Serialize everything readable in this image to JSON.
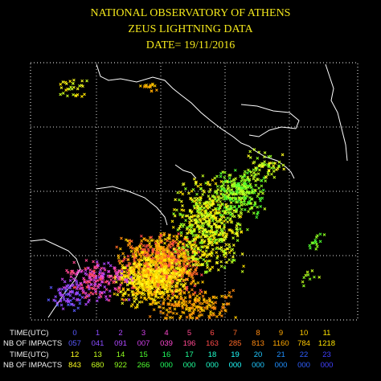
{
  "header": {
    "lines": [
      "NATIONAL OBSERVATORY OF ATHENS",
      "ZEUS LIGHTNING DATA",
      "DATE= 19/11/2016"
    ]
  },
  "legend": {
    "rows": [
      {
        "time_label": "TIME(UTC)",
        "impacts_label": "NB OF IMPACTS",
        "times": [
          "0",
          "1",
          "2",
          "3",
          "4",
          "5",
          "6",
          "7",
          "8",
          "9",
          "10",
          "11"
        ],
        "impacts": [
          "057",
          "041",
          "091",
          "007",
          "039",
          "196",
          "163",
          "285",
          "813",
          "1160",
          "784",
          "1218"
        ],
        "colors": [
          "#5a5aff",
          "#8a4cff",
          "#b048ff",
          "#d040e8",
          "#ff48d0",
          "#ff4890",
          "#ff4a4a",
          "#ff6a28",
          "#ff8a10",
          "#ffa800",
          "#ffc800",
          "#ffe400"
        ]
      },
      {
        "time_label": "TIME(UTC)",
        "impacts_label": "NB OF IMPACTS",
        "times": [
          "12",
          "13",
          "14",
          "15",
          "16",
          "17",
          "18",
          "19",
          "20",
          "21",
          "22",
          "23"
        ],
        "impacts": [
          "843",
          "680",
          "922",
          "266",
          "000",
          "000",
          "000",
          "000",
          "000",
          "000",
          "000",
          "000"
        ],
        "colors": [
          "#ffff20",
          "#c8ff20",
          "#90ff20",
          "#50ff30",
          "#20ff60",
          "#20ff98",
          "#20ffcc",
          "#20ffff",
          "#20c8ff",
          "#2090ff",
          "#3060ff",
          "#4040ff"
        ]
      }
    ]
  }
}
